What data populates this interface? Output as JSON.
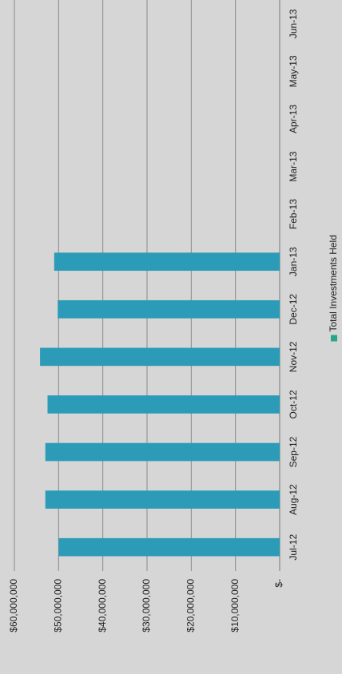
{
  "chart_data": {
    "type": "bar",
    "series": [
      {
        "name": "Total Investments Held",
        "color": "#2b9bb7",
        "values": [
          50000000,
          53000000,
          53000000,
          52500000,
          54200000,
          50200000,
          51000000,
          null,
          null,
          null,
          null,
          null
        ]
      }
    ],
    "categories": [
      "Jul-12",
      "Aug-12",
      "Sep-12",
      "Oct-12",
      "Nov-12",
      "Dec-12",
      "Jan-13",
      "Feb-13",
      "Mar-13",
      "Apr-13",
      "May-13",
      "Jun-13"
    ],
    "ylim": [
      0,
      60000000
    ],
    "yticks": [
      {
        "value": 0,
        "label": "$-"
      },
      {
        "value": 10000000,
        "label": "$10,000,000"
      },
      {
        "value": 20000000,
        "label": "$20,000,000"
      },
      {
        "value": 30000000,
        "label": "$30,000,000"
      },
      {
        "value": 40000000,
        "label": "$40,000,000"
      },
      {
        "value": 50000000,
        "label": "$50,000,000"
      },
      {
        "value": 60000000,
        "label": "$60,000,000"
      }
    ],
    "grid": true,
    "legend": "bottom"
  }
}
